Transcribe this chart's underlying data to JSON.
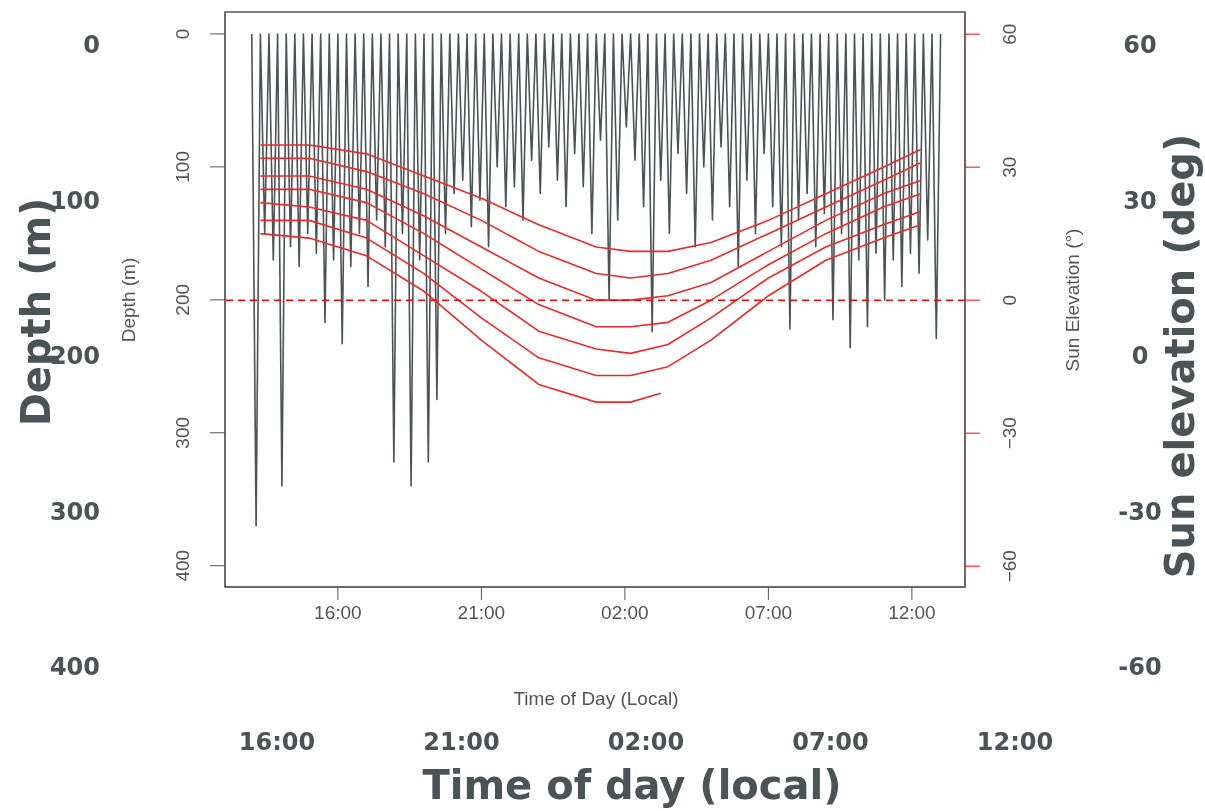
{
  "chart_data": [
    {
      "type": "line",
      "xlabel": "Time of Day (Local)",
      "ylabel": "Depth (m)",
      "y2label": "Sun Elevation (°)",
      "xlim": [
        "2000-01-01T12:04",
        "2000-01-02T13:51"
      ],
      "xticks": [
        {
          "value": "2000-01-01T16:00",
          "label": "16:00"
        },
        {
          "value": "2000-01-01T21:00",
          "label": "21:00"
        },
        {
          "value": "2000-01-02T02:00",
          "label": "02:00"
        },
        {
          "value": "2000-01-02T07:00",
          "label": "07:00"
        },
        {
          "value": "2000-01-02T12:00",
          "label": "12:00"
        }
      ],
      "ylim": [
        416,
        -16.5
      ],
      "yticks": [
        0,
        100,
        200,
        300,
        400
      ],
      "y2lim": [
        -64.7,
        65
      ],
      "y2ticks": [
        {
          "value": -60,
          "label": "−60"
        },
        {
          "value": -30,
          "label": "−30"
        },
        0,
        30,
        60
      ],
      "ref_lines": [
        {
          "axis": "y2",
          "value": 0,
          "color": "#ff0000",
          "line_style": "dashed"
        }
      ],
      "marker": "none",
      "line_style": "solid",
      "series": [
        {
          "color": "#4a5355",
          "x": [
            "2000-01-01T13:00",
            "2000-01-01T13:09",
            "2000-01-01T13:18",
            "2000-01-01T13:27",
            "2000-01-01T13:36",
            "2000-01-01T13:45",
            "2000-01-01T13:54",
            "2000-01-01T14:03",
            "2000-01-01T14:12",
            "2000-01-01T14:21",
            "2000-01-01T14:30",
            "2000-01-01T14:39",
            "2000-01-01T14:48",
            "2000-01-01T14:57",
            "2000-01-01T15:06",
            "2000-01-01T15:15",
            "2000-01-01T15:24",
            "2000-01-01T15:33",
            "2000-01-01T15:42",
            "2000-01-01T15:51",
            "2000-01-01T16:00",
            "2000-01-01T16:09",
            "2000-01-01T16:18",
            "2000-01-01T16:27",
            "2000-01-01T16:36",
            "2000-01-01T16:45",
            "2000-01-01T16:54",
            "2000-01-01T17:03",
            "2000-01-01T17:12",
            "2000-01-01T17:21",
            "2000-01-01T17:30",
            "2000-01-01T17:39",
            "2000-01-01T17:48",
            "2000-01-01T17:57",
            "2000-01-01T18:06",
            "2000-01-01T18:15",
            "2000-01-01T18:24",
            "2000-01-01T18:33",
            "2000-01-01T18:42",
            "2000-01-01T18:51",
            "2000-01-01T19:00",
            "2000-01-01T19:09",
            "2000-01-01T19:18",
            "2000-01-01T19:27",
            "2000-01-01T19:36",
            "2000-01-01T19:45",
            "2000-01-01T19:54",
            "2000-01-01T20:03",
            "2000-01-01T20:12",
            "2000-01-01T20:21",
            "2000-01-01T20:30",
            "2000-01-01T20:39",
            "2000-01-01T20:48",
            "2000-01-01T20:57",
            "2000-01-01T21:06",
            "2000-01-01T21:15",
            "2000-01-01T21:24",
            "2000-01-01T21:33",
            "2000-01-01T21:42",
            "2000-01-01T21:51",
            "2000-01-01T22:00",
            "2000-01-01T22:09",
            "2000-01-01T22:18",
            "2000-01-01T22:27",
            "2000-01-01T22:36",
            "2000-01-01T22:45",
            "2000-01-01T22:54",
            "2000-01-01T23:03",
            "2000-01-01T23:12",
            "2000-01-01T23:21",
            "2000-01-01T23:30",
            "2000-01-01T23:39",
            "2000-01-01T23:48",
            "2000-01-01T23:57",
            "2000-01-02T00:06",
            "2000-01-02T00:15",
            "2000-01-02T00:24",
            "2000-01-02T00:33",
            "2000-01-02T00:42",
            "2000-01-02T00:51",
            "2000-01-02T01:00",
            "2000-01-02T01:09",
            "2000-01-02T01:18",
            "2000-01-02T01:27",
            "2000-01-02T01:36",
            "2000-01-02T01:45",
            "2000-01-02T01:54",
            "2000-01-02T02:03",
            "2000-01-02T02:12",
            "2000-01-02T02:21",
            "2000-01-02T02:30",
            "2000-01-02T02:39",
            "2000-01-02T02:48",
            "2000-01-02T02:57",
            "2000-01-02T03:06",
            "2000-01-02T03:15",
            "2000-01-02T03:24",
            "2000-01-02T03:33",
            "2000-01-02T03:42",
            "2000-01-02T03:51",
            "2000-01-02T04:00",
            "2000-01-02T04:09",
            "2000-01-02T04:18",
            "2000-01-02T04:27",
            "2000-01-02T04:36",
            "2000-01-02T04:45",
            "2000-01-02T04:54",
            "2000-01-02T05:03",
            "2000-01-02T05:12",
            "2000-01-02T05:21",
            "2000-01-02T05:30",
            "2000-01-02T05:39",
            "2000-01-02T05:48",
            "2000-01-02T05:57",
            "2000-01-02T06:06",
            "2000-01-02T06:15",
            "2000-01-02T06:24",
            "2000-01-02T06:33",
            "2000-01-02T06:42",
            "2000-01-02T06:51",
            "2000-01-02T07:00",
            "2000-01-02T07:09",
            "2000-01-02T07:18",
            "2000-01-02T07:27",
            "2000-01-02T07:36",
            "2000-01-02T07:45",
            "2000-01-02T07:54",
            "2000-01-02T08:03",
            "2000-01-02T08:12",
            "2000-01-02T08:21",
            "2000-01-02T08:30",
            "2000-01-02T08:39",
            "2000-01-02T08:48",
            "2000-01-02T08:57",
            "2000-01-02T09:06",
            "2000-01-02T09:15",
            "2000-01-02T09:24",
            "2000-01-02T09:33",
            "2000-01-02T09:42",
            "2000-01-02T09:51",
            "2000-01-02T10:00",
            "2000-01-02T10:09",
            "2000-01-02T10:18",
            "2000-01-02T10:27",
            "2000-01-02T10:36",
            "2000-01-02T10:45",
            "2000-01-02T10:54",
            "2000-01-02T11:03",
            "2000-01-02T11:12",
            "2000-01-02T11:21",
            "2000-01-02T11:30",
            "2000-01-02T11:39",
            "2000-01-02T11:48",
            "2000-01-02T11:57",
            "2000-01-02T12:06",
            "2000-01-02T12:15",
            "2000-01-02T12:24",
            "2000-01-02T12:33",
            "2000-01-02T12:42",
            "2000-01-02T12:51",
            "2000-01-02T13:00"
          ],
          "values": [
            0,
            370,
            0,
            150,
            0,
            170,
            0,
            340,
            0,
            160,
            0,
            175,
            0,
            150,
            0,
            165,
            0,
            217,
            0,
            170,
            0,
            233,
            0,
            175,
            0,
            150,
            0,
            190,
            0,
            140,
            0,
            160,
            0,
            322,
            0,
            150,
            0,
            340,
            0,
            170,
            0,
            322,
            0,
            275,
            0,
            150,
            0,
            120,
            0,
            110,
            0,
            145,
            0,
            125,
            0,
            160,
            0,
            100,
            0,
            130,
            0,
            115,
            0,
            140,
            0,
            95,
            0,
            120,
            0,
            85,
            0,
            110,
            0,
            130,
            0,
            90,
            0,
            115,
            0,
            150,
            0,
            80,
            0,
            200,
            0,
            140,
            0,
            70,
            0,
            95,
            0,
            130,
            0,
            224,
            0,
            110,
            0,
            150,
            0,
            90,
            0,
            120,
            0,
            160,
            0,
            100,
            0,
            140,
            0,
            85,
            0,
            130,
            0,
            175,
            0,
            110,
            0,
            150,
            0,
            90,
            0,
            130,
            0,
            160,
            0,
            222,
            0,
            140,
            0,
            120,
            0,
            160,
            0,
            135,
            0,
            215,
            0,
            150,
            0,
            236,
            0,
            170,
            0,
            220,
            0,
            165,
            0,
            200,
            0,
            170,
            0,
            190,
            0,
            165,
            0,
            180,
            0,
            155,
            0,
            229,
            0
          ]
        },
        {
          "color": "#f02828",
          "axis": "y2",
          "x": [
            "2000-01-01T13:18",
            "2000-01-01T15:00",
            "2000-01-01T17:00",
            "2000-01-01T19:00",
            "2000-01-01T21:00",
            "2000-01-01T23:00",
            "2000-01-02T01:00",
            "2000-01-02T02:12",
            "2000-01-02T03:30",
            "2000-01-02T05:00",
            "2000-01-02T07:00",
            "2000-01-02T09:00",
            "2000-01-02T11:00",
            "2000-01-02T12:18"
          ],
          "values": [
            35,
            35,
            33,
            28,
            23,
            17,
            12,
            11,
            11,
            13,
            18,
            24,
            30,
            34
          ]
        },
        {
          "color": "#f02828",
          "axis": "y2",
          "x": [
            "2000-01-01T13:18",
            "2000-01-01T15:00",
            "2000-01-01T17:00",
            "2000-01-01T19:00",
            "2000-01-01T21:00",
            "2000-01-01T23:00",
            "2000-01-02T01:00",
            "2000-01-02T02:12",
            "2000-01-02T03:30",
            "2000-01-02T05:00",
            "2000-01-02T07:00",
            "2000-01-02T09:00",
            "2000-01-02T11:00",
            "2000-01-02T12:18"
          ],
          "values": [
            32,
            32,
            29,
            24,
            18,
            11,
            6,
            5,
            6,
            9,
            15,
            21,
            27,
            31
          ]
        },
        {
          "color": "#f02828",
          "axis": "y2",
          "x": [
            "2000-01-01T13:18",
            "2000-01-01T15:00",
            "2000-01-01T17:00",
            "2000-01-01T19:00",
            "2000-01-01T21:00",
            "2000-01-01T23:00",
            "2000-01-02T01:00",
            "2000-01-02T02:12",
            "2000-01-02T03:30",
            "2000-01-02T05:00",
            "2000-01-02T07:00",
            "2000-01-02T09:00",
            "2000-01-02T11:00",
            "2000-01-02T12:18"
          ],
          "values": [
            28,
            28,
            25,
            19,
            12,
            5,
            0,
            0,
            1,
            4,
            11,
            18,
            24,
            27
          ]
        },
        {
          "color": "#f02828",
          "axis": "y2",
          "x": [
            "2000-01-01T13:18",
            "2000-01-01T15:00",
            "2000-01-01T17:00",
            "2000-01-01T19:00",
            "2000-01-01T21:00",
            "2000-01-01T23:00",
            "2000-01-02T01:00",
            "2000-01-02T02:12",
            "2000-01-02T03:30",
            "2000-01-02T05:00",
            "2000-01-02T07:00",
            "2000-01-02T09:00",
            "2000-01-02T11:00",
            "2000-01-02T12:18"
          ],
          "values": [
            25,
            25,
            22,
            15,
            7,
            -1,
            -6,
            -6,
            -5,
            0,
            8,
            15,
            21,
            24
          ]
        },
        {
          "color": "#f02828",
          "axis": "y2",
          "x": [
            "2000-01-01T13:18",
            "2000-01-01T15:00",
            "2000-01-01T17:00",
            "2000-01-01T19:00",
            "2000-01-01T21:00",
            "2000-01-01T23:00",
            "2000-01-02T01:00",
            "2000-01-02T02:12",
            "2000-01-02T03:30",
            "2000-01-02T05:00",
            "2000-01-02T07:00",
            "2000-01-02T09:00",
            "2000-01-02T11:00",
            "2000-01-02T12:18"
          ],
          "values": [
            22,
            21,
            18,
            10,
            2,
            -7,
            -11,
            -12,
            -10,
            -4,
            5,
            12,
            17,
            20
          ]
        },
        {
          "color": "#f02828",
          "axis": "y2",
          "x": [
            "2000-01-01T13:18",
            "2000-01-01T15:00",
            "2000-01-01T17:00",
            "2000-01-01T19:00",
            "2000-01-01T21:00",
            "2000-01-01T23:00",
            "2000-01-02T01:00",
            "2000-01-02T02:12",
            "2000-01-02T03:30",
            "2000-01-02T05:00",
            "2000-01-02T07:00",
            "2000-01-02T09:00",
            "2000-01-02T11:00",
            "2000-01-02T12:18"
          ],
          "values": [
            18,
            18,
            14,
            6,
            -4,
            -13,
            -17,
            -17,
            -15,
            -9,
            1,
            9,
            14,
            17
          ]
        },
        {
          "color": "#f02828",
          "axis": "y2",
          "x": [
            "2000-01-01T13:18",
            "2000-01-01T15:00",
            "2000-01-01T17:00",
            "2000-01-01T19:00",
            "2000-01-01T21:00",
            "2000-01-01T23:00",
            "2000-01-02T01:00",
            "2000-01-02T02:12",
            "2000-01-02T03:15"
          ],
          "values": [
            15,
            14,
            10,
            2,
            -9,
            -19,
            -23,
            -23,
            -21
          ]
        }
      ]
    },
    {
      "type": "line",
      "xlabel": "Time of day (local)",
      "ylabel": "Depth (m)",
      "y2label": "Sun elevation (deg)",
      "xlim": [
        "2000-01-01T16:00",
        "2000-01-02T12:00"
      ],
      "xticks": [
        {
          "value": "2000-01-01T16:00",
          "label": "16:00"
        },
        {
          "value": "2000-01-01T21:00",
          "label": "21:00"
        },
        {
          "value": "2000-01-02T02:00",
          "label": "02:00"
        },
        {
          "value": "2000-01-02T07:00",
          "label": "07:00"
        },
        {
          "value": "2000-01-02T12:00",
          "label": "12:00"
        }
      ],
      "ylim": [
        400,
        0
      ],
      "yticks": [
        0,
        100,
        200,
        300,
        400
      ],
      "y2lim": [
        -60,
        60
      ],
      "y2ticks": [
        -60,
        -30,
        0,
        30,
        60
      ]
    }
  ]
}
